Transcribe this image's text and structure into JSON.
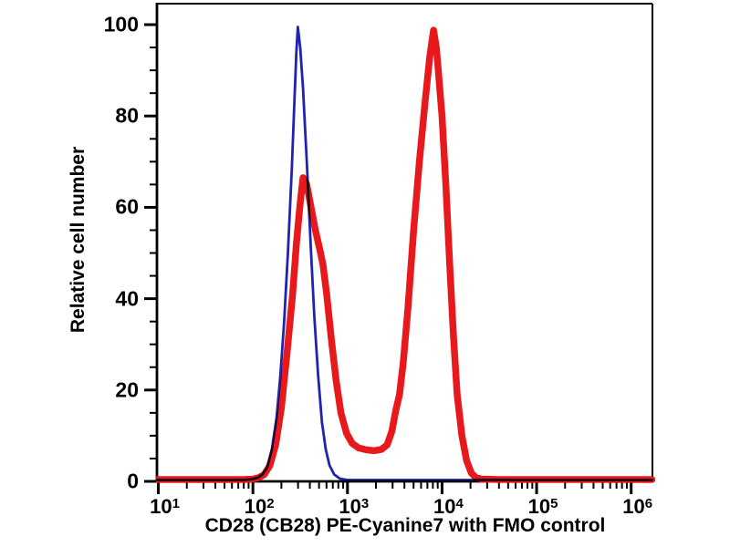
{
  "figure": {
    "title": "CD28 (CB28) PE-Cyanine7 with FMO control",
    "ylabel": "Relative cell number"
  },
  "colors": {
    "background": "#ffffff",
    "axis": "#000000",
    "control_blue": "#2121b2",
    "stained_red": "#e8191c"
  },
  "axes": {
    "y_major_ticks": [
      0,
      20,
      40,
      60,
      80,
      100
    ],
    "y_minor_step": 5,
    "x_major_exponents": [
      1,
      2,
      3,
      4,
      5,
      6
    ],
    "x_base_label": "10"
  },
  "chart_data": {
    "type": "line",
    "subtype": "flow-cytometry-histogram",
    "title": "CD28 (CB28) PE-Cyanine7 with FMO control",
    "xlabel": "CD28 (CB28) PE-Cyanine7 with FMO control",
    "ylabel": "Relative cell number",
    "x_scale": "log10",
    "xlim_log": [
      0.985,
      6.225
    ],
    "ylim": [
      0,
      104.6
    ],
    "grid": false,
    "legend": "none",
    "series": [
      {
        "name": "CD28 (CB28) PE-Cyanine7",
        "color_key": "stained_red",
        "stroke_width": 7.5,
        "peaks": [
          {
            "x": 340,
            "y": 66.5
          },
          {
            "x": 8100,
            "y": 98.8
          }
        ],
        "points": [
          [
            0.99,
            0.4
          ],
          [
            1.6,
            0.4
          ],
          [
            1.9,
            0.4
          ],
          [
            2.0,
            0.5
          ],
          [
            2.06,
            0.8
          ],
          [
            2.12,
            1.5
          ],
          [
            2.18,
            3.5
          ],
          [
            2.24,
            8
          ],
          [
            2.3,
            16
          ],
          [
            2.36,
            28
          ],
          [
            2.42,
            41
          ],
          [
            2.46,
            52
          ],
          [
            2.5,
            61
          ],
          [
            2.53,
            66.5
          ],
          [
            2.57,
            65
          ],
          [
            2.61,
            60.5
          ],
          [
            2.66,
            55
          ],
          [
            2.71,
            50.5
          ],
          [
            2.74,
            47.5
          ],
          [
            2.78,
            41
          ],
          [
            2.83,
            31
          ],
          [
            2.88,
            22
          ],
          [
            2.93,
            15
          ],
          [
            2.99,
            10.5
          ],
          [
            3.05,
            8.3
          ],
          [
            3.12,
            7.3
          ],
          [
            3.2,
            6.9
          ],
          [
            3.28,
            6.7
          ],
          [
            3.36,
            7.0
          ],
          [
            3.42,
            8
          ],
          [
            3.47,
            11
          ],
          [
            3.51,
            15.5
          ],
          [
            3.55,
            19
          ],
          [
            3.59,
            26
          ],
          [
            3.64,
            38
          ],
          [
            3.7,
            55
          ],
          [
            3.76,
            70
          ],
          [
            3.82,
            83
          ],
          [
            3.87,
            93
          ],
          [
            3.91,
            98.8
          ],
          [
            3.94,
            95
          ],
          [
            3.96,
            90
          ],
          [
            4.0,
            80
          ],
          [
            4.04,
            65
          ],
          [
            4.08,
            48
          ],
          [
            4.12,
            32
          ],
          [
            4.16,
            19
          ],
          [
            4.21,
            10
          ],
          [
            4.26,
            4.5
          ],
          [
            4.31,
            1.8
          ],
          [
            4.36,
            0.8
          ],
          [
            4.42,
            0.5
          ],
          [
            4.6,
            0.4
          ],
          [
            5.0,
            0.4
          ],
          [
            5.5,
            0.4
          ],
          [
            6.0,
            0.4
          ],
          [
            6.22,
            0.4
          ]
        ]
      },
      {
        "name": "FMO control",
        "color_key": "control_blue",
        "stroke_width": 2.8,
        "peaks": [
          {
            "x": 300,
            "y": 99.5
          }
        ],
        "points": [
          [
            0.99,
            0.3
          ],
          [
            1.5,
            0.3
          ],
          [
            1.9,
            0.3
          ],
          [
            2.0,
            0.5
          ],
          [
            2.05,
            0.8
          ],
          [
            2.1,
            1.5
          ],
          [
            2.15,
            3
          ],
          [
            2.2,
            7
          ],
          [
            2.25,
            14
          ],
          [
            2.29,
            23
          ],
          [
            2.33,
            35
          ],
          [
            2.37,
            50
          ],
          [
            2.41,
            68
          ],
          [
            2.44,
            84
          ],
          [
            2.46,
            94
          ],
          [
            2.475,
            99.5
          ],
          [
            2.5,
            95
          ],
          [
            2.53,
            86
          ],
          [
            2.57,
            70
          ],
          [
            2.61,
            52
          ],
          [
            2.65,
            36
          ],
          [
            2.69,
            23
          ],
          [
            2.73,
            13
          ],
          [
            2.77,
            7
          ],
          [
            2.81,
            3.5
          ],
          [
            2.86,
            1.5
          ],
          [
            2.92,
            0.6
          ],
          [
            3.0,
            0.3
          ],
          [
            3.5,
            0.3
          ],
          [
            4.5,
            0.3
          ],
          [
            5.5,
            0.3
          ],
          [
            6.22,
            0.3
          ]
        ]
      }
    ]
  }
}
